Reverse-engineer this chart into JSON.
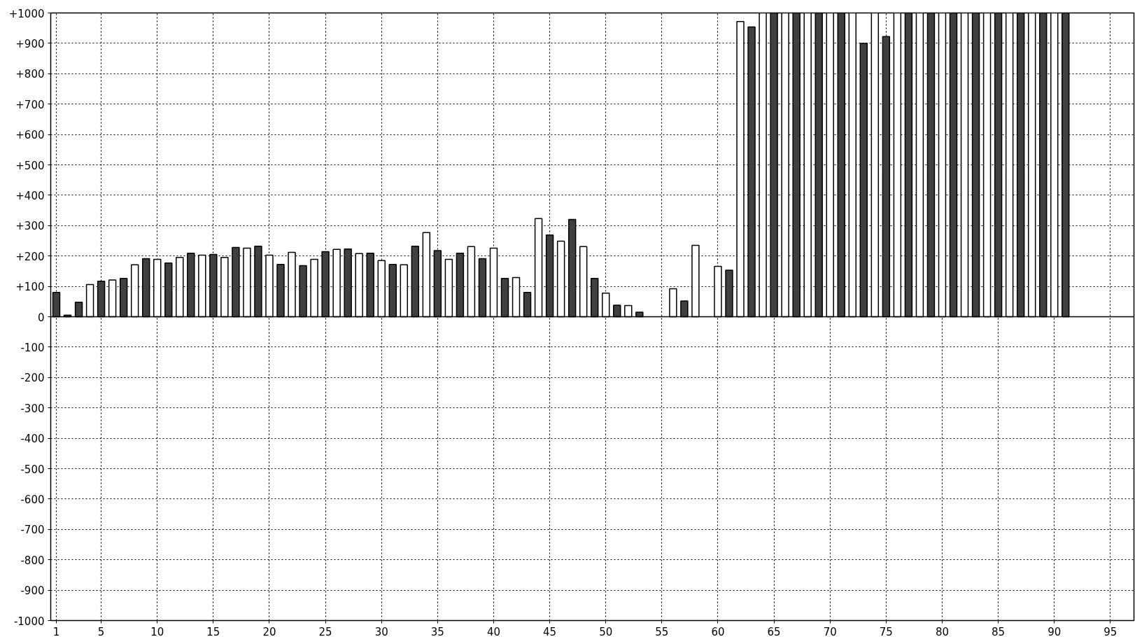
{
  "chart_data": {
    "type": "bar",
    "x": [
      1,
      2,
      3,
      4,
      5,
      6,
      7,
      8,
      9,
      10,
      11,
      12,
      13,
      14,
      15,
      16,
      17,
      18,
      19,
      20,
      21,
      22,
      23,
      24,
      25,
      26,
      27,
      28,
      29,
      30,
      31,
      32,
      33,
      34,
      35,
      36,
      37,
      38,
      39,
      40,
      41,
      42,
      43,
      44,
      45,
      46,
      47,
      48,
      49,
      50,
      51,
      52,
      53,
      54,
      55,
      56,
      57,
      58,
      59,
      60,
      61,
      62,
      63,
      64,
      65,
      66,
      67,
      68,
      69,
      70,
      71,
      72,
      73,
      74,
      75,
      76,
      77,
      78,
      79,
      80,
      81,
      82,
      83,
      84,
      85,
      86,
      87,
      88,
      89,
      90,
      91
    ],
    "values": [
      80,
      5,
      48,
      106,
      117,
      121,
      126,
      171,
      191,
      189,
      177,
      195,
      209,
      203,
      205,
      195,
      228,
      226,
      232,
      203,
      172,
      212,
      168,
      189,
      214,
      222,
      223,
      208,
      209,
      185,
      172,
      171,
      232,
      277,
      218,
      189,
      209,
      231,
      191,
      226,
      126,
      129,
      80,
      323,
      269,
      249,
      320,
      231,
      126,
      78,
      38,
      37,
      15,
      null,
      null,
      92,
      52,
      235,
      null,
      166,
      153,
      972,
      954,
      1000,
      1000,
      1000,
      1000,
      1000,
      1000,
      1000,
      1000,
      1000,
      900,
      1000,
      922,
      1000,
      1000,
      1000,
      1000,
      1000,
      1000,
      1000,
      1000,
      1000,
      1000,
      1000,
      1000,
      1000,
      1000,
      1000,
      1000
    ],
    "colors": [
      "#404040",
      "#404040",
      "#404040",
      "#ffffff",
      "#404040",
      "#ffffff",
      "#404040",
      "#ffffff",
      "#404040",
      "#ffffff",
      "#404040",
      "#ffffff",
      "#404040",
      "#ffffff",
      "#404040",
      "#ffffff",
      "#404040",
      "#ffffff",
      "#404040",
      "#ffffff",
      "#404040",
      "#ffffff",
      "#404040",
      "#ffffff",
      "#404040",
      "#ffffff",
      "#404040",
      "#ffffff",
      "#404040",
      "#ffffff",
      "#404040",
      "#ffffff",
      "#404040",
      "#ffffff",
      "#404040",
      "#ffffff",
      "#404040",
      "#ffffff",
      "#404040",
      "#ffffff",
      "#404040",
      "#ffffff",
      "#404040",
      "#ffffff",
      "#404040",
      "#ffffff",
      "#404040",
      "#ffffff",
      "#404040",
      "#ffffff",
      "#404040",
      "#ffffff",
      "#404040",
      "#ffffff",
      "#404040",
      "#ffffff",
      "#404040",
      "#ffffff",
      "#404040",
      "#ffffff",
      "#404040",
      "#ffffff",
      "#404040",
      "#ffffff",
      "#404040",
      "#ffffff",
      "#404040",
      "#ffffff",
      "#404040",
      "#ffffff",
      "#404040",
      "#ffffff",
      "#404040",
      "#ffffff",
      "#404040",
      "#ffffff",
      "#404040",
      "#ffffff",
      "#404040",
      "#ffffff",
      "#404040",
      "#ffffff",
      "#404040",
      "#ffffff",
      "#404040",
      "#ffffff",
      "#404040",
      "#ffffff",
      "#404040",
      "#ffffff",
      "#404040"
    ],
    "xlim": [
      0.5,
      97.1
    ],
    "xticks": [
      1,
      5,
      10,
      15,
      20,
      25,
      30,
      35,
      40,
      45,
      50,
      55,
      60,
      65,
      70,
      75,
      80,
      85,
      90,
      95
    ],
    "ylim": [
      -1000,
      1000
    ],
    "yticks": [
      {
        "value": -1000,
        "label": "-1000"
      },
      {
        "value": -900,
        "label": "-900"
      },
      {
        "value": -800,
        "label": "-800"
      },
      {
        "value": -700,
        "label": "-700"
      },
      {
        "value": -600,
        "label": "-600"
      },
      {
        "value": -500,
        "label": "-500"
      },
      {
        "value": -400,
        "label": "-400"
      },
      {
        "value": -300,
        "label": "-300"
      },
      {
        "value": -200,
        "label": "-200"
      },
      {
        "value": -100,
        "label": "-100"
      },
      0,
      {
        "value": 100,
        "label": "+100"
      },
      {
        "value": 200,
        "label": "+200"
      },
      {
        "value": 300,
        "label": "+300"
      },
      {
        "value": 400,
        "label": "+400"
      },
      {
        "value": 500,
        "label": "+500"
      },
      {
        "value": 600,
        "label": "+600"
      },
      {
        "value": 700,
        "label": "+700"
      },
      {
        "value": 800,
        "label": "+800"
      },
      {
        "value": 900,
        "label": "+900"
      },
      {
        "value": 1000,
        "label": "+1000"
      }
    ],
    "grid": true
  }
}
